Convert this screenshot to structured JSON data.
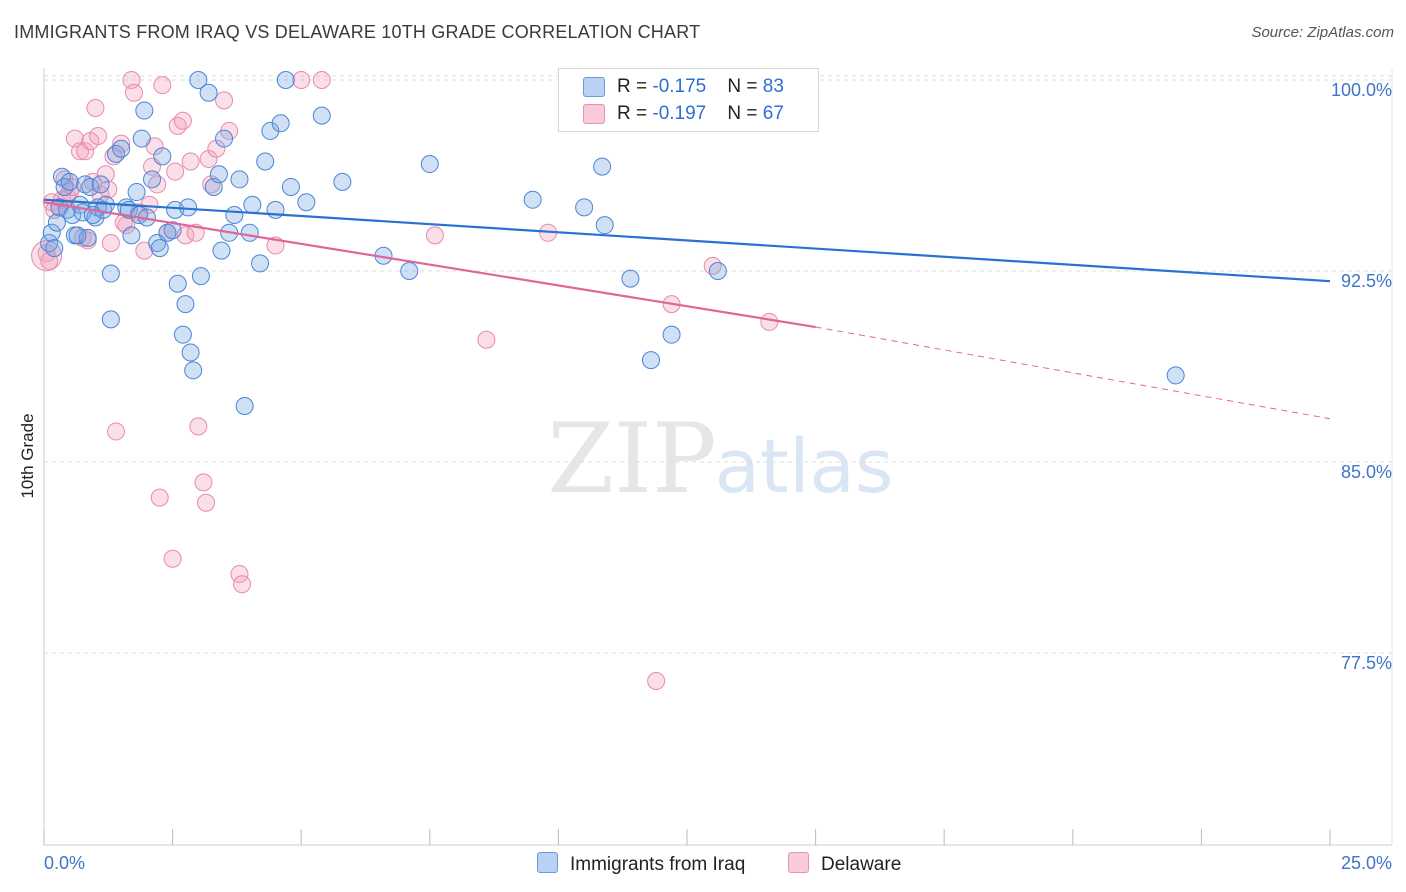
{
  "header": {
    "title": "IMMIGRANTS FROM IRAQ VS DELAWARE 10TH GRADE CORRELATION CHART",
    "source": "Source: ZipAtlas.com"
  },
  "watermark": {
    "zip": "ZIP",
    "atlas": "atlas"
  },
  "legend_top": [
    {
      "r_label": "R = ",
      "r_value": "-0.175",
      "n_label": "N = ",
      "n_value": "83",
      "color": "#a9c7ef",
      "stroke": "#5a8fd8"
    },
    {
      "r_label": "R = ",
      "r_value": "-0.197",
      "n_label": "N = ",
      "n_value": "67",
      "color": "#f6bfd2",
      "stroke": "#e58aaa"
    }
  ],
  "legend_bottom": [
    {
      "label": "Immigrants from Iraq",
      "color": "#a9c7ef",
      "stroke": "#5a8fd8"
    },
    {
      "label": "Delaware",
      "color": "#f6bfd2",
      "stroke": "#e58aaa"
    }
  ],
  "colors": {
    "blue_fill": "rgba(120,165,225,0.35)",
    "blue_stroke": "#4a86d6",
    "blue_line": "#2a72d1",
    "pink_fill": "rgba(242,160,190,0.35)",
    "pink_stroke": "#e88aac",
    "pink_line": "#e0669a",
    "axis_text": "#3f74c9",
    "grid": "#dcdcdc"
  },
  "chart_data": {
    "type": "scatter",
    "title": "IMMIGRANTS FROM IRAQ VS DELAWARE 10TH GRADE CORRELATION CHART",
    "xlabel": "",
    "ylabel": "10th Grade",
    "xlim": [
      0,
      25
    ],
    "ylim": [
      70.0,
      101.0
    ],
    "x_tick_labels": [
      "0.0%",
      "25.0%"
    ],
    "y_ticks": [
      77.5,
      85.0,
      92.5,
      100.0
    ],
    "y_tick_labels": [
      "77.5%",
      "85.0%",
      "92.5%",
      "100.0%"
    ],
    "grid": true,
    "series": [
      {
        "name": "Immigrants from Iraq",
        "r": -0.175,
        "n": 83,
        "trend": {
          "x": [
            0,
            25
          ],
          "y": [
            95.3,
            92.1
          ]
        },
        "points": [
          [
            0.1,
            93.6
          ],
          [
            0.15,
            94.0
          ],
          [
            0.2,
            93.4
          ],
          [
            0.3,
            95.0
          ],
          [
            0.35,
            96.2
          ],
          [
            0.4,
            95.8
          ],
          [
            0.45,
            94.9
          ],
          [
            0.5,
            96.0
          ],
          [
            0.55,
            94.7
          ],
          [
            0.6,
            93.9
          ],
          [
            0.7,
            95.1
          ],
          [
            0.75,
            94.8
          ],
          [
            0.8,
            95.9
          ],
          [
            0.85,
            93.8
          ],
          [
            0.9,
            95.8
          ],
          [
            1.0,
            94.6
          ],
          [
            1.05,
            95.0
          ],
          [
            1.1,
            95.9
          ],
          [
            1.15,
            94.9
          ],
          [
            1.2,
            95.1
          ],
          [
            1.3,
            92.4
          ],
          [
            1.4,
            97.1
          ],
          [
            1.5,
            97.3
          ],
          [
            1.6,
            95.0
          ],
          [
            1.65,
            94.9
          ],
          [
            1.7,
            93.9
          ],
          [
            1.8,
            95.6
          ],
          [
            1.85,
            94.7
          ],
          [
            1.9,
            97.7
          ],
          [
            2.0,
            94.6
          ],
          [
            2.1,
            96.1
          ],
          [
            2.2,
            93.6
          ],
          [
            2.25,
            93.4
          ],
          [
            2.3,
            97.0
          ],
          [
            2.4,
            94.0
          ],
          [
            2.5,
            94.1
          ],
          [
            2.55,
            94.9
          ],
          [
            2.6,
            92.0
          ],
          [
            2.7,
            90.0
          ],
          [
            2.8,
            95.0
          ],
          [
            2.85,
            89.3
          ],
          [
            2.9,
            88.6
          ],
          [
            3.0,
            100.0
          ],
          [
            3.05,
            92.3
          ],
          [
            3.2,
            99.5
          ],
          [
            3.3,
            95.8
          ],
          [
            3.4,
            96.3
          ],
          [
            3.45,
            93.3
          ],
          [
            3.5,
            97.7
          ],
          [
            3.6,
            94.0
          ],
          [
            3.7,
            94.7
          ],
          [
            3.8,
            96.1
          ],
          [
            3.9,
            87.2
          ],
          [
            4.0,
            94.0
          ],
          [
            4.05,
            95.1
          ],
          [
            4.2,
            92.8
          ],
          [
            4.3,
            96.8
          ],
          [
            4.4,
            98.0
          ],
          [
            4.5,
            94.9
          ],
          [
            4.6,
            98.3
          ],
          [
            4.7,
            100.0
          ],
          [
            4.8,
            95.8
          ],
          [
            5.1,
            95.2
          ],
          [
            5.4,
            98.6
          ],
          [
            5.8,
            96.0
          ],
          [
            6.6,
            93.1
          ],
          [
            7.1,
            92.5
          ],
          [
            7.5,
            96.7
          ],
          [
            9.5,
            95.3
          ],
          [
            10.5,
            95.0
          ],
          [
            10.9,
            94.3
          ],
          [
            10.85,
            96.6
          ],
          [
            11.4,
            92.2
          ],
          [
            11.8,
            89.0
          ],
          [
            12.2,
            90.0
          ],
          [
            13.1,
            92.5
          ],
          [
            22.0,
            88.4
          ],
          [
            1.95,
            98.8
          ],
          [
            0.25,
            94.4
          ],
          [
            0.65,
            93.9
          ],
          [
            2.75,
            91.2
          ],
          [
            1.3,
            90.6
          ],
          [
            0.95,
            94.7
          ]
        ]
      },
      {
        "name": "Delaware",
        "r": -0.197,
        "n": 67,
        "trend": {
          "x": [
            0,
            15
          ],
          "y": [
            95.2,
            90.3
          ]
        },
        "trend_dashed": {
          "x": [
            15,
            25
          ],
          "y": [
            90.3,
            86.7
          ]
        },
        "points": [
          [
            0.05,
            93.2
          ],
          [
            0.1,
            92.9
          ],
          [
            0.15,
            95.2
          ],
          [
            0.2,
            94.9
          ],
          [
            0.3,
            95.0
          ],
          [
            0.35,
            95.3
          ],
          [
            0.4,
            96.1
          ],
          [
            0.5,
            95.6
          ],
          [
            0.6,
            97.7
          ],
          [
            0.7,
            97.2
          ],
          [
            0.75,
            93.8
          ],
          [
            0.8,
            97.2
          ],
          [
            0.9,
            97.6
          ],
          [
            0.95,
            96.0
          ],
          [
            1.0,
            98.9
          ],
          [
            1.05,
            97.8
          ],
          [
            1.1,
            95.5
          ],
          [
            1.2,
            96.3
          ],
          [
            1.25,
            95.7
          ],
          [
            1.3,
            93.6
          ],
          [
            1.4,
            86.2
          ],
          [
            1.5,
            97.5
          ],
          [
            1.6,
            94.3
          ],
          [
            1.7,
            100.0
          ],
          [
            1.75,
            99.5
          ],
          [
            1.85,
            94.8
          ],
          [
            1.95,
            93.3
          ],
          [
            2.05,
            95.1
          ],
          [
            2.15,
            97.4
          ],
          [
            2.2,
            95.9
          ],
          [
            2.25,
            83.6
          ],
          [
            2.3,
            99.8
          ],
          [
            2.4,
            94.0
          ],
          [
            2.5,
            81.2
          ],
          [
            2.55,
            96.4
          ],
          [
            2.6,
            98.2
          ],
          [
            2.7,
            98.4
          ],
          [
            2.75,
            93.9
          ],
          [
            2.85,
            96.8
          ],
          [
            3.0,
            86.4
          ],
          [
            3.1,
            84.2
          ],
          [
            3.15,
            83.4
          ],
          [
            3.2,
            96.9
          ],
          [
            3.25,
            95.9
          ],
          [
            3.35,
            97.3
          ],
          [
            3.5,
            99.2
          ],
          [
            3.6,
            98.0
          ],
          [
            3.8,
            80.6
          ],
          [
            3.85,
            80.2
          ],
          [
            4.5,
            93.5
          ],
          [
            5.0,
            100.0
          ],
          [
            5.4,
            100.0
          ],
          [
            7.6,
            93.9
          ],
          [
            8.6,
            89.8
          ],
          [
            9.8,
            94.0
          ],
          [
            13.0,
            100.0
          ],
          [
            12.2,
            91.2
          ],
          [
            11.9,
            76.4
          ],
          [
            13.0,
            92.7
          ],
          [
            14.1,
            90.5
          ],
          [
            1.55,
            94.4
          ],
          [
            0.45,
            95.4
          ],
          [
            0.85,
            93.7
          ],
          [
            2.95,
            94.0
          ],
          [
            1.35,
            97.0
          ],
          [
            0.55,
            95.8
          ],
          [
            2.1,
            96.6
          ]
        ]
      }
    ]
  }
}
